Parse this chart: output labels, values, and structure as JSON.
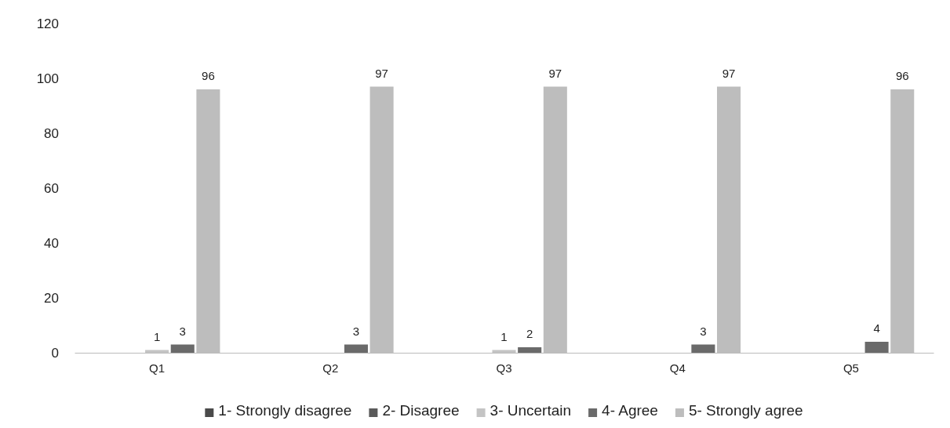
{
  "chart_data": {
    "type": "bar",
    "categories": [
      "Q1",
      "Q2",
      "Q3",
      "Q4",
      "Q5"
    ],
    "ylim": [
      0,
      120
    ],
    "yticks": [
      0,
      20,
      40,
      60,
      80,
      100,
      120
    ],
    "grid": false,
    "legend": "bottom",
    "series": [
      {
        "name": "1- Strongly disagree",
        "color": "#4a4a4a",
        "values": [
          null,
          null,
          null,
          null,
          null
        ]
      },
      {
        "name": "2- Disagree",
        "color": "#5a5a5a",
        "values": [
          null,
          null,
          null,
          null,
          null
        ]
      },
      {
        "name": "3- Uncertain",
        "color": "#c4c4c4",
        "values": [
          1,
          null,
          1,
          null,
          null
        ],
        "value_labels": [
          "1",
          null,
          "1",
          null,
          null
        ]
      },
      {
        "name": "4- Agree",
        "color": "#6a6a6a",
        "values": [
          3,
          3,
          2,
          3,
          4
        ],
        "value_labels": [
          "3",
          "3",
          "2",
          "3",
          "4"
        ]
      },
      {
        "name": "5- Strongly agree",
        "color": "#bdbdbd",
        "values": [
          96,
          97,
          97,
          97,
          96
        ],
        "value_labels": [
          "96",
          "97",
          "97",
          "97",
          "96"
        ]
      }
    ]
  }
}
